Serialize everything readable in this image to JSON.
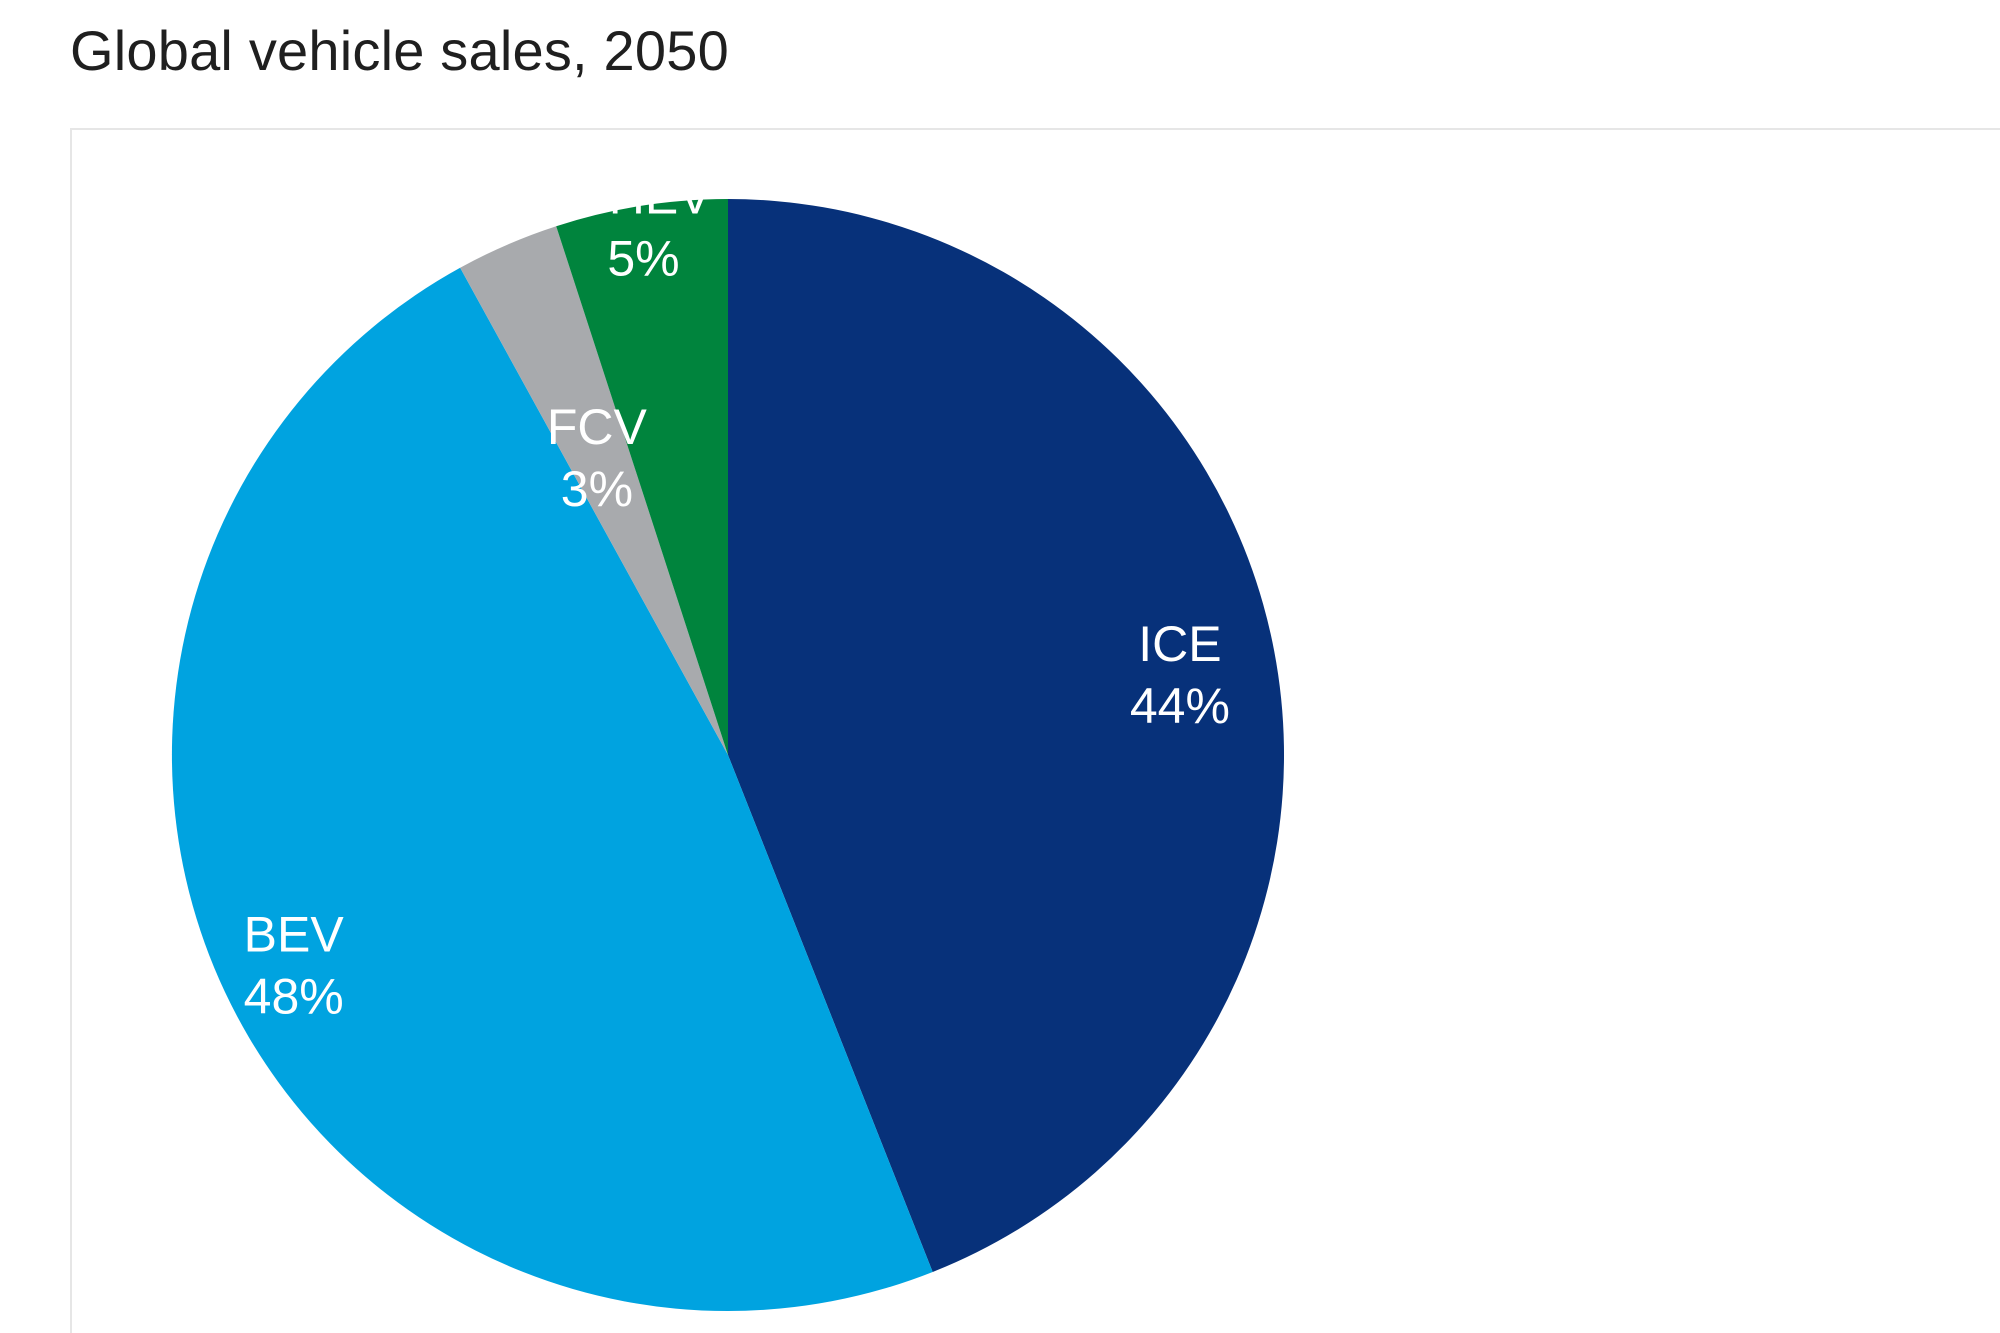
{
  "chart_data": {
    "type": "pie",
    "title": "Global vehicle sales, 2050",
    "start_angle_deg": 0,
    "direction": "clockwise",
    "slices": [
      {
        "label": "ICE",
        "value": 44,
        "value_label": "44%",
        "color": "#07317a"
      },
      {
        "label": "BEV",
        "value": 48,
        "value_label": "48%",
        "color": "#00a3e0"
      },
      {
        "label": "FCV",
        "value": 3,
        "value_label": "3%",
        "color": "#a8aaad"
      },
      {
        "label": "PHEV",
        "value": 5,
        "value_label": "5%",
        "color": "#00843d"
      }
    ],
    "legend": "none"
  }
}
